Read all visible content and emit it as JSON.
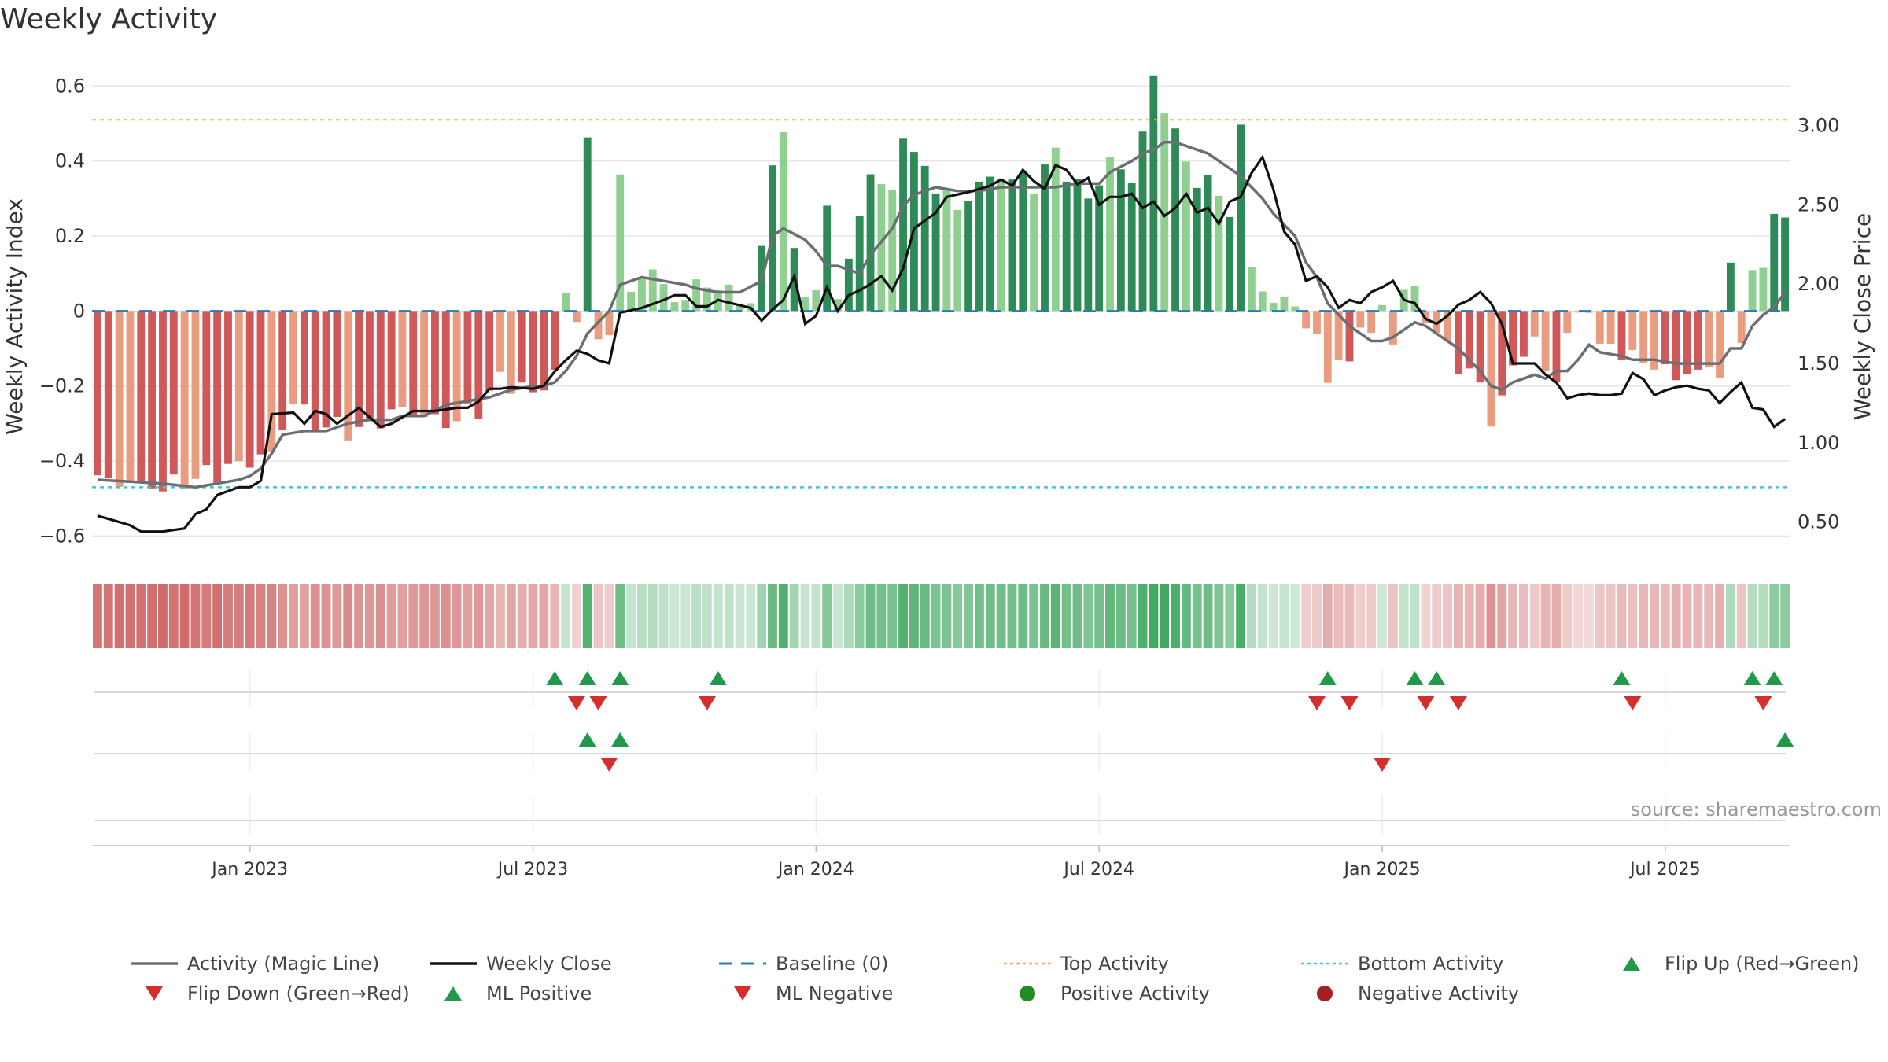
{
  "title": "Weekly Activity",
  "source": "source: sharemaestro.com",
  "colors": {
    "neg_dark": "#cf5858",
    "neg_light": "#ea9c80",
    "pos_dark": "#2e8b57",
    "pos_light": "#8fcf8f",
    "magic_line": "#6b6f73",
    "close_line": "#111111",
    "baseline": "#2b7bb9",
    "top_line": "#f0a868",
    "bottom_line": "#3fc9c9",
    "flip_up": "#22994a",
    "flip_down": "#d32f2f",
    "pos_dot": "#228b22",
    "neg_dot": "#a32020",
    "grid": "#e6e6e6"
  },
  "legend": [
    {
      "label": "Activity (Magic Line)",
      "sym": "line-grey"
    },
    {
      "label": "Weekly Close",
      "sym": "line-black"
    },
    {
      "label": "Baseline (0)",
      "sym": "dash-blue"
    },
    {
      "label": "Top Activity",
      "sym": "dot-orange"
    },
    {
      "label": "Bottom Activity",
      "sym": "dot-cyan"
    },
    {
      "label": "Flip Up (Red→Green)",
      "sym": "tri-up-green"
    },
    {
      "label": "Flip Down (Green→Red)",
      "sym": "tri-down-red"
    },
    {
      "label": "ML Positive",
      "sym": "tri-up-green"
    },
    {
      "label": "ML Negative",
      "sym": "tri-down-red"
    },
    {
      "label": "Positive Activity",
      "sym": "circle-green"
    },
    {
      "label": "Negative Activity",
      "sym": "circle-red"
    }
  ],
  "chart_data": {
    "type": "bar",
    "title": "Weekly Activity",
    "ylabel": "Weekly Activity Index",
    "y2label": "Weekly Close Price",
    "ylim": [
      -0.66,
      0.63
    ],
    "y2lim": [
      0.27,
      3.32
    ],
    "yticks": [
      0.6,
      0.4,
      0.2,
      0,
      -0.2,
      -0.4,
      -0.6
    ],
    "ytick_labels": [
      "0.6",
      "0.4",
      "0.2",
      "0",
      "−0.2",
      "−0.4",
      "−0.6"
    ],
    "y2ticks": [
      3.0,
      2.5,
      2.0,
      1.5,
      1.0,
      0.5
    ],
    "y2tick_labels": [
      "3.00",
      "2.50",
      "2.00",
      "1.50",
      "1.00",
      "0.50"
    ],
    "top_activity": 0.51,
    "bottom_activity": -0.47,
    "baseline": 0,
    "x_start": "2022-10-03",
    "week_count": 156,
    "x_tick_labels": [
      "Jan 2023",
      "Jul 2023",
      "Jan 2024",
      "Jul 2024",
      "Jan 2025",
      "Jul 2025"
    ],
    "x_tick_weeks": [
      14,
      40,
      66,
      92,
      118,
      144
    ],
    "activity_keys": [
      [
        0,
        -0.45
      ],
      [
        6,
        -0.47
      ],
      [
        12,
        -0.42
      ],
      [
        16,
        -0.38
      ],
      [
        18,
        -0.24
      ],
      [
        20,
        -0.3
      ],
      [
        24,
        -0.32
      ],
      [
        28,
        -0.26
      ],
      [
        32,
        -0.3
      ],
      [
        35,
        -0.26
      ],
      [
        37,
        -0.18
      ],
      [
        40,
        -0.22
      ],
      [
        41,
        -0.2
      ],
      [
        42,
        -0.16
      ],
      [
        42.5,
        0.06
      ],
      [
        43,
        0.04
      ],
      [
        44,
        -0.02
      ],
      [
        45,
        0.47
      ],
      [
        46,
        -0.1
      ],
      [
        47,
        -0.04
      ],
      [
        48,
        0.36
      ],
      [
        49,
        0.03
      ],
      [
        50,
        0.12
      ],
      [
        53,
        0.04
      ],
      [
        54,
        0.02
      ],
      [
        55,
        0.08
      ],
      [
        57,
        0.06
      ],
      [
        59,
        0.04
      ],
      [
        60,
        0.02
      ],
      [
        61,
        0.15
      ],
      [
        62,
        0.42
      ],
      [
        63,
        0.46
      ],
      [
        64,
        0.16
      ],
      [
        65,
        0.06
      ],
      [
        66,
        0.04
      ],
      [
        67,
        0.28
      ],
      [
        68,
        0.04
      ],
      [
        70,
        0.24
      ],
      [
        71,
        0.38
      ],
      [
        73,
        0.3
      ],
      [
        74,
        0.49
      ],
      [
        75,
        0.41
      ],
      [
        77,
        0.34
      ],
      [
        79,
        0.27
      ],
      [
        81,
        0.34
      ],
      [
        83,
        0.36
      ],
      [
        86,
        0.34
      ],
      [
        88,
        0.42
      ],
      [
        90,
        0.33
      ],
      [
        91,
        0.3
      ],
      [
        93,
        0.4
      ],
      [
        95,
        0.35
      ],
      [
        97,
        0.61
      ],
      [
        98,
        0.55
      ],
      [
        99,
        0.48
      ],
      [
        100,
        0.38
      ],
      [
        102,
        0.34
      ],
      [
        104,
        0.27
      ],
      [
        105,
        0.48
      ],
      [
        106,
        0.12
      ],
      [
        107,
        0.06
      ],
      [
        108,
        0.02
      ],
      [
        110,
        0.03
      ],
      [
        111,
        -0.05
      ],
      [
        112,
        -0.08
      ],
      [
        113,
        -0.16
      ],
      [
        115,
        -0.14
      ],
      [
        116,
        -0.02
      ],
      [
        117,
        -0.08
      ],
      [
        118,
        0.02
      ],
      [
        119,
        -0.08
      ],
      [
        120,
        0.05
      ],
      [
        121,
        0.06
      ],
      [
        122,
        -0.02
      ],
      [
        123,
        -0.06
      ],
      [
        125,
        -0.14
      ],
      [
        127,
        -0.2
      ],
      [
        128,
        -0.28
      ],
      [
        129,
        -0.25
      ],
      [
        130,
        -0.14
      ],
      [
        132,
        -0.08
      ],
      [
        133,
        -0.16
      ],
      [
        134,
        -0.18
      ],
      [
        135,
        -0.06
      ],
      [
        136,
        -0.02
      ],
      [
        137,
        0.02
      ],
      [
        138,
        -0.1
      ],
      [
        140,
        -0.1
      ],
      [
        141,
        -0.13
      ],
      [
        143,
        -0.14
      ],
      [
        145,
        -0.18
      ],
      [
        146,
        -0.16
      ],
      [
        149,
        -0.16
      ],
      [
        150,
        0.12
      ],
      [
        151,
        -0.1
      ],
      [
        152,
        0.14
      ],
      [
        153,
        0.09
      ],
      [
        154,
        0.26
      ],
      [
        155,
        0.27
      ]
    ],
    "close_keys": [
      [
        0,
        0.54
      ],
      [
        3,
        0.48
      ],
      [
        4,
        0.44
      ],
      [
        6,
        0.44
      ],
      [
        8,
        0.46
      ],
      [
        9,
        0.55
      ],
      [
        10,
        0.58
      ],
      [
        11,
        0.67
      ],
      [
        13,
        0.72
      ],
      [
        14,
        0.72
      ],
      [
        15,
        0.76
      ],
      [
        16,
        1.18
      ],
      [
        18,
        1.19
      ],
      [
        19,
        1.12
      ],
      [
        20,
        1.2
      ],
      [
        21,
        1.18
      ],
      [
        22,
        1.12
      ],
      [
        24,
        1.22
      ],
      [
        26,
        1.1
      ],
      [
        27,
        1.12
      ],
      [
        28,
        1.16
      ],
      [
        29,
        1.2
      ],
      [
        31,
        1.2
      ],
      [
        33,
        1.22
      ],
      [
        34,
        1.22
      ],
      [
        35,
        1.26
      ],
      [
        36,
        1.34
      ],
      [
        37,
        1.34
      ],
      [
        38,
        1.35
      ],
      [
        40,
        1.34
      ],
      [
        41,
        1.36
      ],
      [
        42,
        1.45
      ],
      [
        43,
        1.52
      ],
      [
        44,
        1.58
      ],
      [
        45,
        1.56
      ],
      [
        46,
        1.52
      ],
      [
        47,
        1.5
      ],
      [
        48,
        1.82
      ],
      [
        50,
        1.85
      ],
      [
        52,
        1.9
      ],
      [
        53,
        1.93
      ],
      [
        54,
        1.93
      ],
      [
        55,
        1.86
      ],
      [
        56,
        1.86
      ],
      [
        57,
        1.9
      ],
      [
        60,
        1.85
      ],
      [
        61,
        1.77
      ],
      [
        62,
        1.84
      ],
      [
        63,
        1.9
      ],
      [
        64,
        2.05
      ],
      [
        65,
        1.75
      ],
      [
        66,
        1.8
      ],
      [
        67,
        1.98
      ],
      [
        68,
        1.83
      ],
      [
        69,
        1.93
      ],
      [
        70,
        1.96
      ],
      [
        71,
        2.0
      ],
      [
        72,
        2.05
      ],
      [
        73,
        1.96
      ],
      [
        74,
        2.1
      ],
      [
        75,
        2.35
      ],
      [
        77,
        2.45
      ],
      [
        78,
        2.55
      ],
      [
        80,
        2.58
      ],
      [
        82,
        2.62
      ],
      [
        83,
        2.66
      ],
      [
        84,
        2.62
      ],
      [
        85,
        2.72
      ],
      [
        86,
        2.65
      ],
      [
        87,
        2.6
      ],
      [
        88,
        2.75
      ],
      [
        89,
        2.72
      ],
      [
        90,
        2.63
      ],
      [
        91,
        2.67
      ],
      [
        92,
        2.5
      ],
      [
        93,
        2.55
      ],
      [
        94,
        2.55
      ],
      [
        95,
        2.57
      ],
      [
        96,
        2.48
      ],
      [
        97,
        2.52
      ],
      [
        98,
        2.43
      ],
      [
        99,
        2.48
      ],
      [
        100,
        2.57
      ],
      [
        101,
        2.45
      ],
      [
        102,
        2.48
      ],
      [
        103,
        2.38
      ],
      [
        104,
        2.52
      ],
      [
        105,
        2.55
      ],
      [
        106,
        2.7
      ],
      [
        107,
        2.8
      ],
      [
        108,
        2.6
      ],
      [
        109,
        2.33
      ],
      [
        110,
        2.25
      ],
      [
        111,
        2.02
      ],
      [
        112,
        2.05
      ],
      [
        113,
        1.98
      ],
      [
        114,
        1.85
      ],
      [
        115,
        1.9
      ],
      [
        116,
        1.88
      ],
      [
        117,
        1.95
      ],
      [
        118,
        1.98
      ],
      [
        119,
        2.02
      ],
      [
        120,
        1.9
      ],
      [
        121,
        1.88
      ],
      [
        122,
        1.78
      ],
      [
        123,
        1.75
      ],
      [
        124,
        1.8
      ],
      [
        125,
        1.87
      ],
      [
        126,
        1.9
      ],
      [
        127,
        1.95
      ],
      [
        128,
        1.88
      ],
      [
        129,
        1.75
      ],
      [
        130,
        1.5
      ],
      [
        132,
        1.5
      ],
      [
        133,
        1.43
      ],
      [
        134,
        1.38
      ],
      [
        135,
        1.28
      ],
      [
        136,
        1.3
      ],
      [
        137,
        1.31
      ],
      [
        138,
        1.3
      ],
      [
        139,
        1.3
      ],
      [
        140,
        1.31
      ],
      [
        141,
        1.44
      ],
      [
        142,
        1.4
      ],
      [
        143,
        1.3
      ],
      [
        144,
        1.33
      ],
      [
        145,
        1.35
      ],
      [
        146,
        1.36
      ],
      [
        147,
        1.34
      ],
      [
        148,
        1.33
      ],
      [
        149,
        1.25
      ],
      [
        150,
        1.32
      ],
      [
        151,
        1.38
      ],
      [
        152,
        1.22
      ],
      [
        153,
        1.21
      ],
      [
        154,
        1.1
      ],
      [
        155,
        1.15
      ]
    ],
    "magic_keys": [
      [
        0,
        -0.45
      ],
      [
        6,
        -0.46
      ],
      [
        9,
        -0.47
      ],
      [
        11,
        -0.46
      ],
      [
        13,
        -0.45
      ],
      [
        14,
        -0.44
      ],
      [
        15,
        -0.42
      ],
      [
        16,
        -0.38
      ],
      [
        17,
        -0.33
      ],
      [
        19,
        -0.32
      ],
      [
        21,
        -0.32
      ],
      [
        23,
        -0.3
      ],
      [
        25,
        -0.29
      ],
      [
        27,
        -0.29
      ],
      [
        28,
        -0.28
      ],
      [
        30,
        -0.28
      ],
      [
        32,
        -0.25
      ],
      [
        34,
        -0.24
      ],
      [
        36,
        -0.23
      ],
      [
        37,
        -0.22
      ],
      [
        38,
        -0.21
      ],
      [
        40,
        -0.2
      ],
      [
        41,
        -0.2
      ],
      [
        42,
        -0.19
      ],
      [
        43,
        -0.16
      ],
      [
        44,
        -0.12
      ],
      [
        45,
        -0.06
      ],
      [
        47,
        0.0
      ],
      [
        48,
        0.07
      ],
      [
        49,
        0.08
      ],
      [
        50,
        0.09
      ],
      [
        52,
        0.08
      ],
      [
        54,
        0.07
      ],
      [
        55,
        0.06
      ],
      [
        57,
        0.05
      ],
      [
        59,
        0.05
      ],
      [
        61,
        0.08
      ],
      [
        62,
        0.2
      ],
      [
        63,
        0.22
      ],
      [
        65,
        0.19
      ],
      [
        66,
        0.16
      ],
      [
        67,
        0.12
      ],
      [
        68,
        0.12
      ],
      [
        70,
        0.1
      ],
      [
        71,
        0.15
      ],
      [
        73,
        0.22
      ],
      [
        74,
        0.28
      ],
      [
        75,
        0.31
      ],
      [
        77,
        0.33
      ],
      [
        79,
        0.32
      ],
      [
        81,
        0.32
      ],
      [
        83,
        0.33
      ],
      [
        86,
        0.33
      ],
      [
        88,
        0.33
      ],
      [
        90,
        0.34
      ],
      [
        92,
        0.34
      ],
      [
        93,
        0.37
      ],
      [
        95,
        0.4
      ],
      [
        96,
        0.42
      ],
      [
        97,
        0.43
      ],
      [
        98,
        0.45
      ],
      [
        99,
        0.45
      ],
      [
        100,
        0.44
      ],
      [
        102,
        0.42
      ],
      [
        104,
        0.38
      ],
      [
        105,
        0.36
      ],
      [
        106,
        0.33
      ],
      [
        107,
        0.3
      ],
      [
        108,
        0.26
      ],
      [
        110,
        0.2
      ],
      [
        111,
        0.13
      ],
      [
        112,
        0.09
      ],
      [
        113,
        0.02
      ],
      [
        115,
        -0.04
      ],
      [
        116,
        -0.06
      ],
      [
        117,
        -0.08
      ],
      [
        118,
        -0.08
      ],
      [
        119,
        -0.07
      ],
      [
        120,
        -0.05
      ],
      [
        121,
        -0.03
      ],
      [
        122,
        -0.04
      ],
      [
        123,
        -0.06
      ],
      [
        125,
        -0.1
      ],
      [
        127,
        -0.16
      ],
      [
        128,
        -0.2
      ],
      [
        129,
        -0.21
      ],
      [
        130,
        -0.19
      ],
      [
        132,
        -0.17
      ],
      [
        133,
        -0.18
      ],
      [
        134,
        -0.16
      ],
      [
        135,
        -0.16
      ],
      [
        136,
        -0.13
      ],
      [
        137,
        -0.09
      ],
      [
        138,
        -0.11
      ],
      [
        140,
        -0.12
      ],
      [
        141,
        -0.13
      ],
      [
        143,
        -0.13
      ],
      [
        145,
        -0.14
      ],
      [
        146,
        -0.14
      ],
      [
        149,
        -0.14
      ],
      [
        150,
        -0.1
      ],
      [
        151,
        -0.1
      ],
      [
        152,
        -0.04
      ],
      [
        153,
        -0.01
      ],
      [
        154,
        0.01
      ],
      [
        155,
        0.05
      ]
    ],
    "flip_up_weeks": [
      42,
      45,
      48,
      57,
      113,
      121,
      123,
      140,
      152,
      154
    ],
    "flip_down_weeks": [
      44,
      46,
      56,
      112,
      115,
      122,
      125,
      141,
      153
    ],
    "ml_positive_weeks": [
      45,
      48,
      155
    ],
    "ml_negative_weeks": [
      47,
      118
    ]
  }
}
